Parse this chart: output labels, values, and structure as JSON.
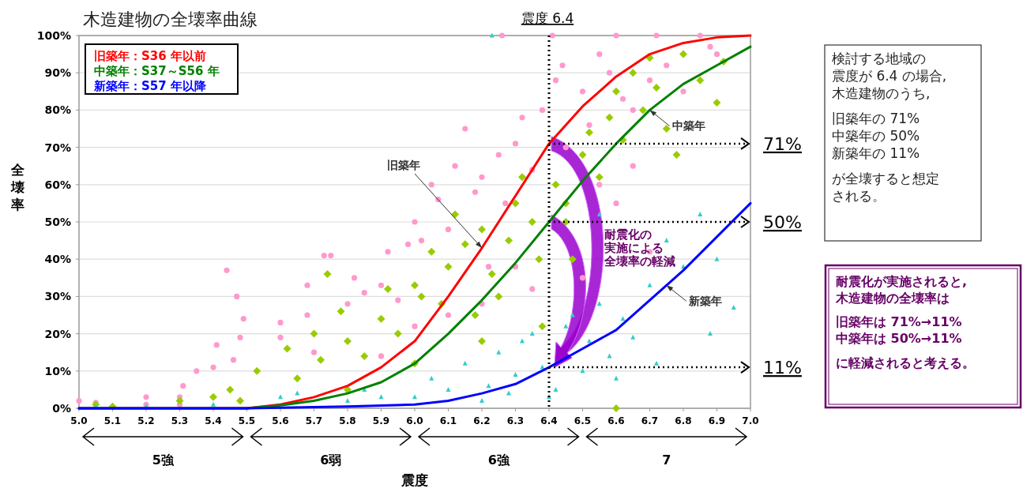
{
  "chart_data": {
    "type": "scatter",
    "title": "木造建物の全壊率曲線",
    "xlabel": "震度",
    "ylabel": "全壊率",
    "xlim": [
      5.0,
      7.0
    ],
    "ylim": [
      0,
      100
    ],
    "xticks": [
      {
        "value": 5.0,
        "label": "5.0"
      },
      {
        "value": 5.1,
        "label": "5.1"
      },
      {
        "value": 5.2,
        "label": "5.2"
      },
      {
        "value": 5.3,
        "label": "5.3"
      },
      {
        "value": 5.4,
        "label": "5.4"
      },
      {
        "value": 5.5,
        "label": "5.5"
      },
      {
        "value": 5.6,
        "label": "5.6"
      },
      {
        "value": 5.7,
        "label": "5.7"
      },
      {
        "value": 5.8,
        "label": "5.8"
      },
      {
        "value": 5.9,
        "label": "5.9"
      },
      {
        "value": 6.0,
        "label": "6.0"
      },
      {
        "value": 6.1,
        "label": "6.1"
      },
      {
        "value": 6.2,
        "label": "6.2"
      },
      {
        "value": 6.3,
        "label": "6.3"
      },
      {
        "value": 6.4,
        "label": "6.4"
      },
      {
        "value": 6.5,
        "label": "6.5"
      },
      {
        "value": 6.6,
        "label": "6.6"
      },
      {
        "value": 6.7,
        "label": "6.7"
      },
      {
        "value": 6.8,
        "label": "6.8"
      },
      {
        "value": 6.9,
        "label": "6.9"
      },
      {
        "value": 7.0,
        "label": "7.0"
      }
    ],
    "yticks": [
      {
        "value": 0,
        "label": "0%"
      },
      {
        "value": 10,
        "label": "10%"
      },
      {
        "value": 20,
        "label": "20%"
      },
      {
        "value": 30,
        "label": "30%"
      },
      {
        "value": 40,
        "label": "40%"
      },
      {
        "value": 50,
        "label": "50%"
      },
      {
        "value": 60,
        "label": "60%"
      },
      {
        "value": 70,
        "label": "70%"
      },
      {
        "value": 80,
        "label": "80%"
      },
      {
        "value": 90,
        "label": "90%"
      },
      {
        "value": 100,
        "label": "100%"
      }
    ],
    "grid": "y",
    "legend": "top left",
    "series": [
      {
        "marker": "circle",
        "color": "#ff99cc",
        "x": [
          5.0,
          5.05,
          5.2,
          5.2,
          5.3,
          5.3,
          5.35,
          5.31,
          5.4,
          5.41,
          5.44,
          5.47,
          5.48,
          5.49,
          5.46,
          5.6,
          5.6,
          5.68,
          5.68,
          5.73,
          5.75,
          5.7,
          5.8,
          5.82,
          5.85,
          5.9,
          5.92,
          5.95,
          5.98,
          6.0,
          6.02,
          6.05,
          6.07,
          6.1,
          6.12,
          6.15,
          6.18,
          6.2,
          6.22,
          6.25,
          6.27,
          6.3,
          6.32,
          6.35,
          6.38,
          6.26,
          6.41,
          6.42,
          6.44,
          6.45,
          6.5,
          6.52,
          6.55,
          6.58,
          6.6,
          6.62,
          6.65,
          6.7,
          6.72,
          6.75,
          6.8,
          6.85,
          6.88,
          6.9,
          6.6,
          6.55,
          6.65,
          6.7,
          6.3,
          6.35,
          6.2,
          6.1,
          6.0,
          5.9,
          6.5
        ],
        "values": [
          2,
          1.5,
          3,
          1,
          3,
          1,
          10,
          6,
          11,
          17,
          37,
          30,
          19,
          24,
          13,
          23,
          19,
          33,
          25,
          41,
          41,
          15,
          28,
          35,
          31,
          33,
          42,
          29,
          44,
          50,
          45,
          60,
          56,
          48,
          65,
          75,
          58,
          62,
          38,
          68,
          55,
          71,
          78,
          64,
          80,
          100,
          100,
          88,
          92,
          70,
          85,
          76,
          95,
          90,
          100,
          83,
          80,
          88,
          100,
          92,
          85,
          100,
          97,
          95,
          55,
          60,
          65,
          42,
          38,
          32,
          28,
          25,
          22,
          14,
          35
        ]
      },
      {
        "marker": "diamond",
        "color": "#99cc00",
        "x": [
          5.05,
          5.1,
          5.3,
          5.4,
          5.45,
          5.48,
          5.53,
          5.62,
          5.65,
          5.7,
          5.72,
          5.74,
          5.78,
          5.8,
          5.85,
          5.9,
          5.92,
          5.95,
          6.0,
          6.02,
          6.05,
          6.08,
          6.1,
          6.12,
          6.15,
          6.18,
          6.2,
          6.23,
          6.25,
          6.28,
          6.3,
          6.32,
          6.35,
          6.37,
          6.38,
          6.42,
          6.45,
          6.47,
          6.5,
          6.52,
          6.55,
          6.58,
          6.6,
          6.62,
          6.65,
          6.68,
          6.7,
          6.72,
          6.75,
          6.78,
          6.8,
          6.85,
          6.9,
          6.92,
          6.6,
          6.45,
          6.2,
          6.0,
          5.8
        ],
        "values": [
          1,
          0.5,
          2,
          3,
          5,
          2,
          10,
          16,
          8,
          20,
          13,
          36,
          26,
          18,
          14,
          24,
          32,
          20,
          33,
          30,
          42,
          28,
          38,
          52,
          44,
          25,
          48,
          36,
          30,
          45,
          55,
          62,
          50,
          40,
          22,
          60,
          55,
          40,
          68,
          74,
          62,
          78,
          85,
          72,
          90,
          80,
          94,
          86,
          75,
          68,
          95,
          88,
          82,
          93,
          0,
          50,
          18,
          12,
          5
        ]
      },
      {
        "marker": "triangle",
        "color": "#33cccc",
        "x": [
          5.05,
          5.2,
          5.4,
          5.6,
          5.65,
          5.8,
          5.85,
          5.9,
          6.0,
          6.05,
          6.1,
          6.15,
          6.2,
          6.22,
          6.25,
          6.28,
          6.3,
          6.32,
          6.35,
          6.38,
          6.4,
          6.42,
          6.45,
          6.47,
          6.5,
          6.52,
          6.55,
          6.58,
          6.6,
          6.62,
          6.65,
          6.7,
          6.72,
          6.75,
          6.8,
          6.85,
          6.88,
          6.9,
          6.95,
          6.23,
          6.55
        ],
        "values": [
          0.5,
          0.5,
          1,
          3,
          4,
          2,
          5,
          3,
          3,
          8,
          5,
          12,
          2,
          6,
          15,
          4,
          9,
          18,
          20,
          11,
          3,
          5,
          22,
          25,
          10,
          18,
          28,
          14,
          8,
          24,
          19,
          33,
          12,
          45,
          38,
          52,
          20,
          40,
          27,
          100,
          52
        ]
      },
      {
        "type": "line",
        "marker": "none",
        "name": "旧築年：S36 年以前",
        "color": "#ff0000",
        "x": [
          5.0,
          5.5,
          5.6,
          5.7,
          5.8,
          5.9,
          6.0,
          6.1,
          6.2,
          6.3,
          6.4,
          6.5,
          6.6,
          6.7,
          6.8,
          6.9,
          7.0
        ],
        "values": [
          0,
          0,
          1,
          3,
          6,
          11,
          18,
          30,
          43,
          57,
          71,
          81,
          89,
          95,
          98,
          99.5,
          100
        ]
      },
      {
        "type": "line",
        "marker": "none",
        "name": "中築年：S37～S56 年",
        "color": "#008000",
        "x": [
          5.0,
          5.5,
          5.6,
          5.7,
          5.8,
          5.9,
          6.0,
          6.1,
          6.2,
          6.3,
          6.4,
          6.5,
          6.6,
          6.7,
          6.8,
          6.9,
          7.0
        ],
        "values": [
          0,
          0,
          0.8,
          2,
          4,
          7,
          12,
          20,
          29,
          39,
          50,
          61,
          71,
          80,
          87,
          92,
          97
        ]
      },
      {
        "type": "line",
        "marker": "none",
        "name": "新築年：S57 年以降",
        "color": "#0000ff",
        "x": [
          5.0,
          5.5,
          5.8,
          6.0,
          6.1,
          6.2,
          6.3,
          6.4,
          6.5,
          6.6,
          6.7,
          6.8,
          6.9,
          7.0
        ],
        "values": [
          0,
          0,
          0.5,
          1,
          2,
          4,
          6.5,
          11,
          16,
          21,
          29,
          37,
          46,
          55
        ]
      }
    ],
    "ref_lines": [
      {
        "axis": "x",
        "value": 6.4,
        "label": "震度 6.4",
        "line_style": "dotted"
      },
      {
        "axis": "y",
        "value": 71,
        "label": "71%",
        "line_style": "dotted"
      },
      {
        "axis": "y",
        "value": 50,
        "label": "50%",
        "line_style": "dotted"
      },
      {
        "axis": "y",
        "value": 11,
        "label": "11%",
        "line_style": "dotted"
      }
    ],
    "annotations": [
      {
        "text": "旧築年",
        "x": 6.2,
        "y": 43
      },
      {
        "text": "中築年",
        "x": 6.7,
        "y": 80
      },
      {
        "text": "新築年",
        "x": 6.75,
        "y": 33
      },
      "耐震化の",
      "実施による",
      "全壊率の軽減",
      "検討する地域の",
      "震度が 6.4 の場合,",
      "木造建物のうち,",
      "旧築年の 71%",
      "中築年の 50%",
      "新築年の 11%",
      "が全壊すると想定",
      "される。",
      "耐震化が実施されると,",
      "木造建物の全壊率は",
      "旧築年は 71%→11%",
      "中築年は 50%→11%",
      "に軽減されると考える。",
      "5強",
      "6弱",
      "6強",
      "7"
    ]
  }
}
